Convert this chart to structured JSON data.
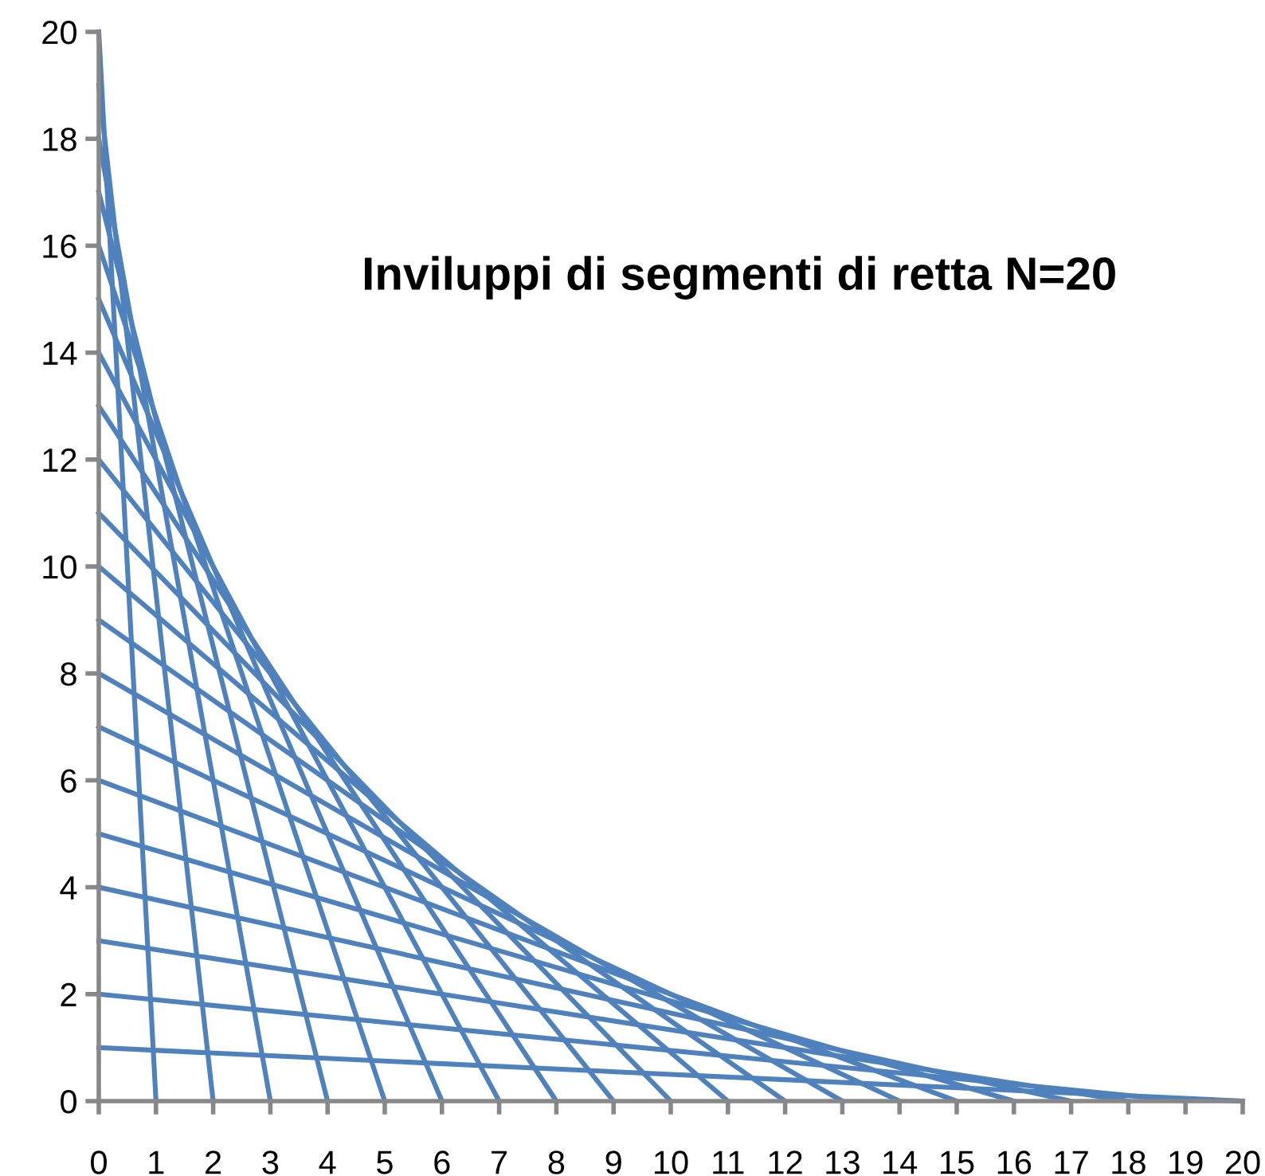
{
  "chart_data": {
    "type": "line",
    "title": "Inviluppi di segmenti di retta N=20",
    "series": [
      {
        "color": "#4f81bd",
        "x": [
          0,
          20
        ],
        "values": [
          1,
          0
        ]
      },
      {
        "color": "#4f81bd",
        "x": [
          0,
          19
        ],
        "values": [
          2,
          0
        ]
      },
      {
        "color": "#4f81bd",
        "x": [
          0,
          18
        ],
        "values": [
          3,
          0
        ]
      },
      {
        "color": "#4f81bd",
        "x": [
          0,
          17
        ],
        "values": [
          4,
          0
        ]
      },
      {
        "color": "#4f81bd",
        "x": [
          0,
          16
        ],
        "values": [
          5,
          0
        ]
      },
      {
        "color": "#4f81bd",
        "x": [
          0,
          15
        ],
        "values": [
          6,
          0
        ]
      },
      {
        "color": "#4f81bd",
        "x": [
          0,
          14
        ],
        "values": [
          7,
          0
        ]
      },
      {
        "color": "#4f81bd",
        "x": [
          0,
          13
        ],
        "values": [
          8,
          0
        ]
      },
      {
        "color": "#4f81bd",
        "x": [
          0,
          12
        ],
        "values": [
          9,
          0
        ]
      },
      {
        "color": "#4f81bd",
        "x": [
          0,
          11
        ],
        "values": [
          10,
          0
        ]
      },
      {
        "color": "#4f81bd",
        "x": [
          0,
          10
        ],
        "values": [
          11,
          0
        ]
      },
      {
        "color": "#4f81bd",
        "x": [
          0,
          9
        ],
        "values": [
          12,
          0
        ]
      },
      {
        "color": "#4f81bd",
        "x": [
          0,
          8
        ],
        "values": [
          13,
          0
        ]
      },
      {
        "color": "#4f81bd",
        "x": [
          0,
          7
        ],
        "values": [
          14,
          0
        ]
      },
      {
        "color": "#4f81bd",
        "x": [
          0,
          6
        ],
        "values": [
          15,
          0
        ]
      },
      {
        "color": "#4f81bd",
        "x": [
          0,
          5
        ],
        "values": [
          16,
          0
        ]
      },
      {
        "color": "#4f81bd",
        "x": [
          0,
          4
        ],
        "values": [
          17,
          0
        ]
      },
      {
        "color": "#4f81bd",
        "x": [
          0,
          3
        ],
        "values": [
          18,
          0
        ]
      },
      {
        "color": "#4f81bd",
        "x": [
          0,
          2
        ],
        "values": [
          19,
          0
        ]
      },
      {
        "color": "#4f81bd",
        "x": [
          0,
          1
        ],
        "values": [
          20,
          0
        ]
      }
    ],
    "xlim": [
      0,
      20
    ],
    "ylim": [
      0,
      20
    ],
    "xticks": [
      0,
      1,
      2,
      3,
      4,
      5,
      6,
      7,
      8,
      9,
      10,
      11,
      12,
      13,
      14,
      15,
      16,
      17,
      18,
      19,
      20
    ],
    "yticks": [
      0,
      2,
      4,
      6,
      8,
      10,
      12,
      14,
      16,
      18,
      20
    ],
    "grid": false,
    "marker": "none",
    "line_style": "solid"
  }
}
